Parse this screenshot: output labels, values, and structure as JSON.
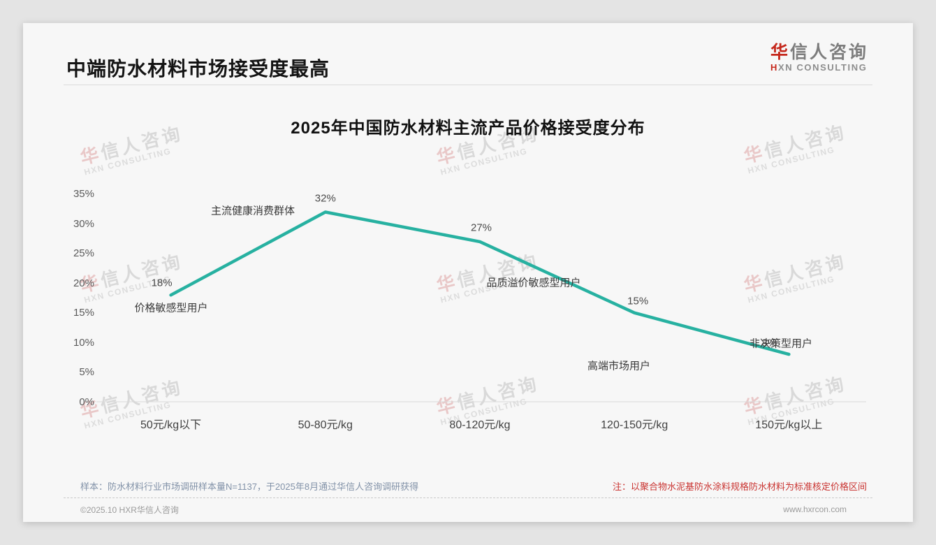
{
  "page": {
    "title": "中端防水材料市场接受度最高",
    "logo": {
      "zh_first": "华",
      "zh_rest": "信人咨询",
      "en_first": "H",
      "en_rest": "XN CONSULTING"
    },
    "watermark": {
      "zh_first": "华",
      "zh_rest": "信人咨询",
      "en": "HXN CONSULTING"
    },
    "notes": {
      "sample": "样本：防水材料行业市场调研样本量N=1137，于2025年8月通过华信人咨询调研获得",
      "price_basis": "注：以聚合物水泥基防水涂料规格防水材料为标准核定价格区间"
    },
    "footer": {
      "left": "©2025.10 HXR华信人咨询",
      "right": "www.hxrcon.com"
    }
  },
  "chart_data": {
    "type": "line",
    "title": "2025年中国防水材料主流产品价格接受度分布",
    "categories": [
      "50元/kg以下",
      "50-80元/kg",
      "80-120元/kg",
      "120-150元/kg",
      "150元/kg以上"
    ],
    "values": [
      18,
      32,
      27,
      15,
      8
    ],
    "point_labels": [
      "18%",
      "32%",
      "27%",
      "15%",
      "8%"
    ],
    "annotations": [
      "价格敏感型用户",
      "主流健康消费群体",
      "品质溢价敏感型用户",
      "高端市场用户",
      "非决策型用户"
    ],
    "y_ticks": [
      "35%",
      "30%",
      "25%",
      "20%",
      "15%",
      "10%",
      "5%",
      "0%"
    ],
    "xlabel": "",
    "ylabel": "",
    "ylim": [
      0,
      35
    ],
    "grid": false,
    "legend": false,
    "line_color": "#27b1a1"
  }
}
